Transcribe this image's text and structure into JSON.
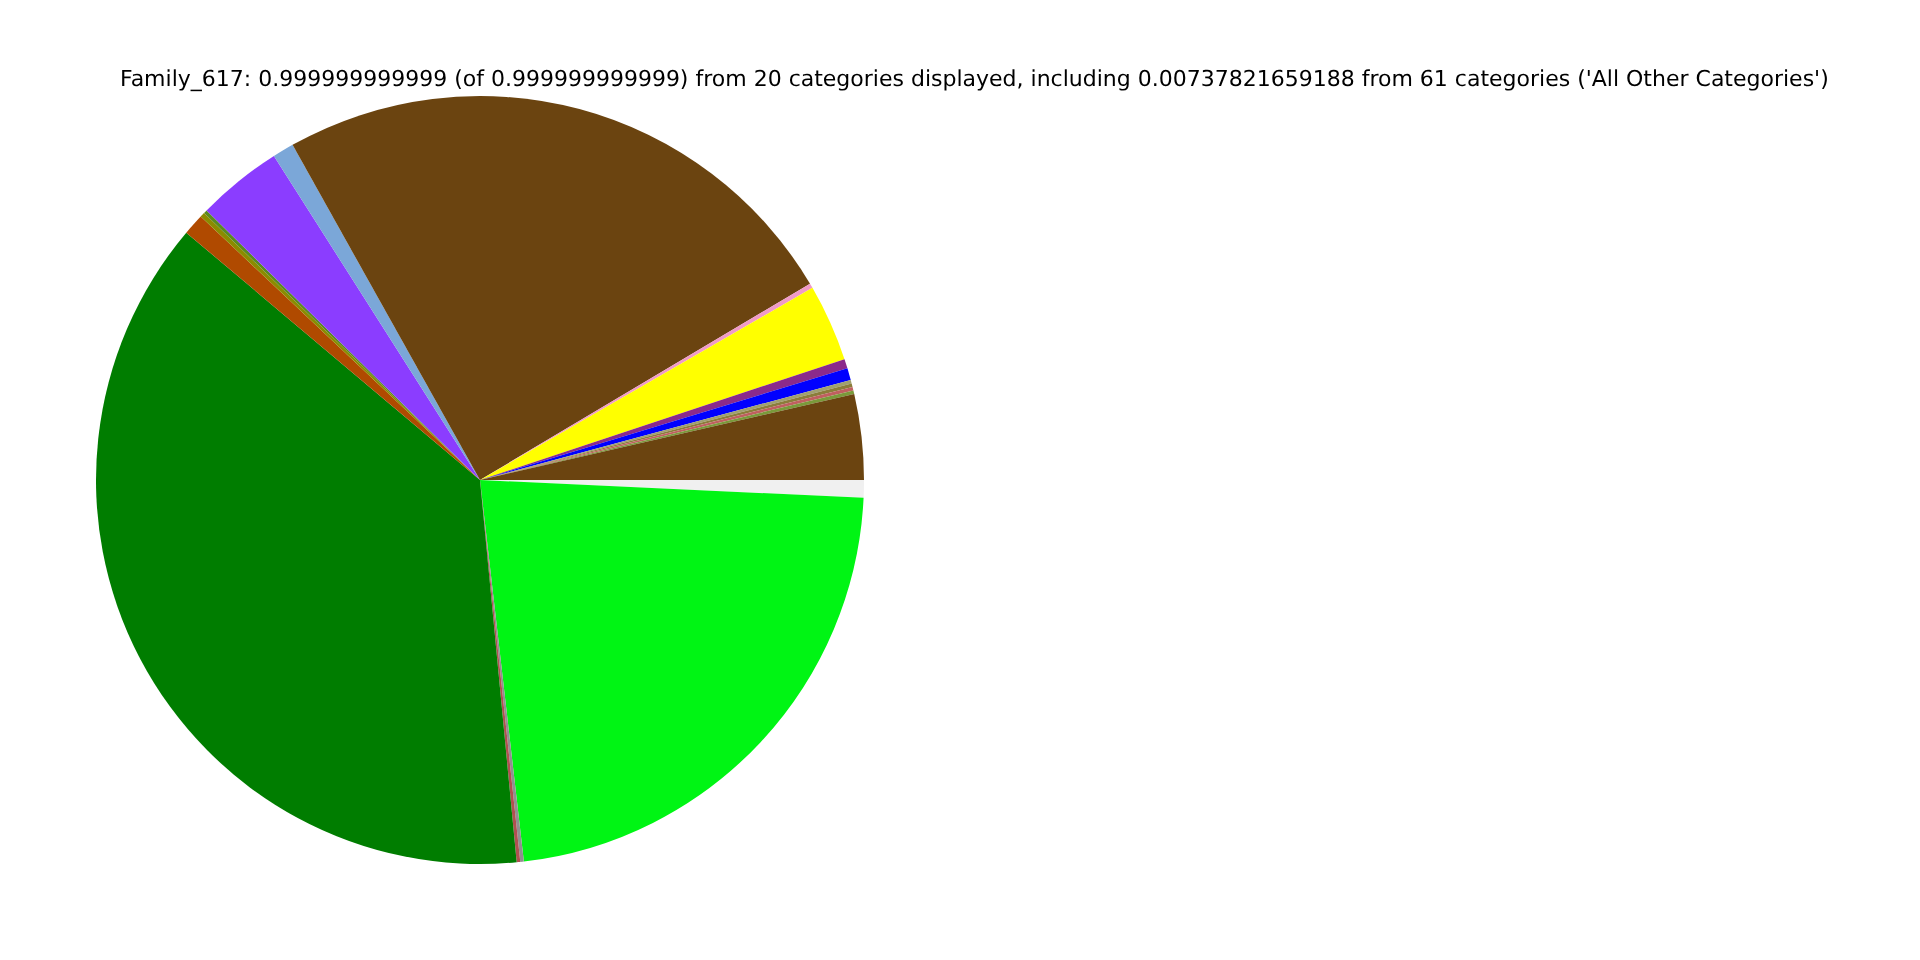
{
  "chart_data": {
    "type": "pie",
    "title": "Family_617: 0.999999999999 (of 0.999999999999) from 20 categories displayed, including 0.00737821659188 from 61 categories ('All Other Categories')",
    "categories": [
      null,
      null,
      null,
      null,
      null,
      null,
      null,
      null,
      null,
      null,
      null,
      null,
      null,
      null,
      null,
      null,
      null,
      null,
      null,
      null
    ],
    "values": [
      0.74,
      22.46,
      0.15,
      0.15,
      37.7,
      0.9,
      0.2,
      0.15,
      3.6,
      0.9,
      24.6,
      0.2,
      3.25,
      0.4,
      0.5,
      0.15,
      0.15,
      0.15,
      0.15,
      3.6
    ],
    "colors": [
      "#f0f0f0",
      "#00f514",
      "#909090",
      "#b05050",
      "#007d00",
      "#b04a00",
      "#8b8b00",
      "#5a8a20",
      "#8b3dff",
      "#7ba7d8",
      "#6b4410",
      "#f09ac8",
      "#ffff00",
      "#8b2a8b",
      "#0000ff",
      "#a0a070",
      "#8b7d3a",
      "#c06060",
      "#7a9a3a",
      "#6b4410"
    ],
    "legend": false
  }
}
